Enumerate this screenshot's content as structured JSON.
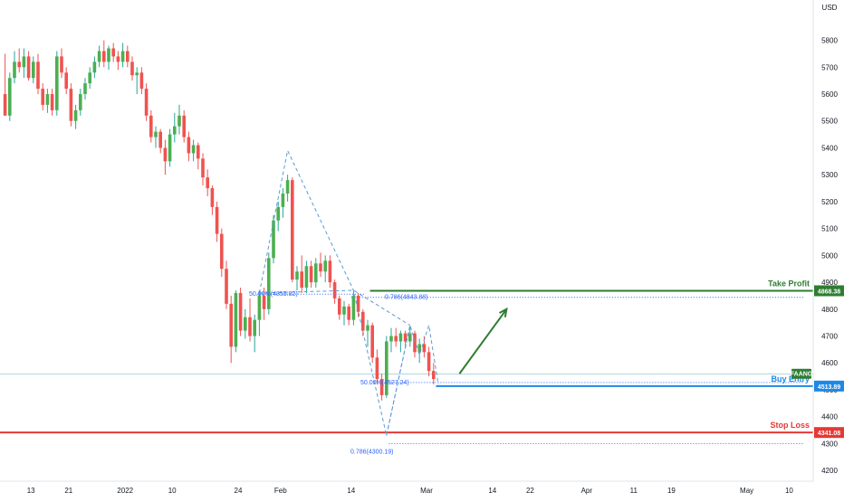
{
  "chart_data": {
    "type": "candlestick",
    "currency": "USD",
    "y_range": [
      4160,
      5950
    ],
    "y_ticks": [
      5800,
      5700,
      5600,
      5500,
      5400,
      5300,
      5200,
      5100,
      5000,
      4900,
      4800,
      4700,
      4600,
      4500,
      4400,
      4300,
      4200
    ],
    "x_tick_labels": [
      "13",
      "21",
      "2022",
      "10",
      "24",
      "Feb",
      "14",
      "Mar",
      "14",
      "22",
      "Apr",
      "11",
      "19",
      "May",
      "10"
    ],
    "x_tick_bar_index": [
      6,
      14,
      26,
      36,
      50,
      59,
      74,
      90,
      104,
      112,
      124,
      134,
      142,
      158,
      167
    ],
    "candles": [
      [
        5600,
        5750,
        5520,
        5520
      ],
      [
        5520,
        5680,
        5500,
        5660
      ],
      [
        5660,
        5760,
        5640,
        5720
      ],
      [
        5720,
        5770,
        5680,
        5700
      ],
      [
        5700,
        5770,
        5660,
        5740
      ],
      [
        5740,
        5760,
        5650,
        5660
      ],
      [
        5660,
        5740,
        5640,
        5720
      ],
      [
        5720,
        5750,
        5600,
        5620
      ],
      [
        5620,
        5640,
        5540,
        5560
      ],
      [
        5560,
        5620,
        5530,
        5600
      ],
      [
        5600,
        5620,
        5520,
        5540
      ],
      [
        5540,
        5760,
        5520,
        5740
      ],
      [
        5740,
        5770,
        5660,
        5680
      ],
      [
        5680,
        5700,
        5600,
        5620
      ],
      [
        5620,
        5640,
        5480,
        5500
      ],
      [
        5500,
        5560,
        5470,
        5540
      ],
      [
        5540,
        5620,
        5520,
        5600
      ],
      [
        5600,
        5660,
        5580,
        5640
      ],
      [
        5640,
        5700,
        5620,
        5680
      ],
      [
        5680,
        5740,
        5660,
        5720
      ],
      [
        5720,
        5780,
        5700,
        5760
      ],
      [
        5760,
        5800,
        5700,
        5720
      ],
      [
        5720,
        5780,
        5690,
        5770
      ],
      [
        5770,
        5790,
        5720,
        5740
      ],
      [
        5740,
        5760,
        5690,
        5720
      ],
      [
        5720,
        5790,
        5700,
        5760
      ],
      [
        5760,
        5780,
        5700,
        5720
      ],
      [
        5720,
        5740,
        5650,
        5670
      ],
      [
        5670,
        5700,
        5600,
        5680
      ],
      [
        5680,
        5700,
        5600,
        5620
      ],
      [
        5620,
        5640,
        5500,
        5520
      ],
      [
        5520,
        5540,
        5420,
        5440
      ],
      [
        5440,
        5480,
        5400,
        5460
      ],
      [
        5460,
        5470,
        5380,
        5400
      ],
      [
        5400,
        5430,
        5300,
        5350
      ],
      [
        5350,
        5470,
        5330,
        5450
      ],
      [
        5450,
        5530,
        5420,
        5480
      ],
      [
        5480,
        5560,
        5450,
        5520
      ],
      [
        5520,
        5540,
        5420,
        5440
      ],
      [
        5440,
        5460,
        5350,
        5380
      ],
      [
        5380,
        5430,
        5350,
        5410
      ],
      [
        5410,
        5420,
        5320,
        5360
      ],
      [
        5360,
        5380,
        5260,
        5290
      ],
      [
        5290,
        5320,
        5220,
        5250
      ],
      [
        5250,
        5260,
        5150,
        5180
      ],
      [
        5180,
        5200,
        5050,
        5080
      ],
      [
        5080,
        5100,
        4920,
        4950
      ],
      [
        4950,
        4980,
        4800,
        4820
      ],
      [
        4820,
        4850,
        4600,
        4660
      ],
      [
        4660,
        4870,
        4640,
        4860
      ],
      [
        4860,
        4880,
        4700,
        4720
      ],
      [
        4720,
        4800,
        4690,
        4770
      ],
      [
        4770,
        4840,
        4680,
        4700
      ],
      [
        4700,
        4780,
        4640,
        4760
      ],
      [
        4760,
        4870,
        4700,
        4850
      ],
      [
        4850,
        4880,
        4760,
        4800
      ],
      [
        4800,
        5010,
        4780,
        4990
      ],
      [
        4990,
        5150,
        4970,
        5130
      ],
      [
        5130,
        5200,
        5090,
        5180
      ],
      [
        5180,
        5250,
        5140,
        5230
      ],
      [
        5230,
        5300,
        5200,
        5280
      ],
      [
        5280,
        5290,
        4900,
        4910
      ],
      [
        4910,
        4960,
        4870,
        4940
      ],
      [
        4940,
        5000,
        4860,
        4880
      ],
      [
        4880,
        4980,
        4860,
        4960
      ],
      [
        4960,
        4980,
        4880,
        4900
      ],
      [
        4900,
        4990,
        4880,
        4970
      ],
      [
        4970,
        5010,
        4920,
        4940
      ],
      [
        4940,
        5000,
        4900,
        4980
      ],
      [
        4980,
        5000,
        4880,
        4900
      ],
      [
        4900,
        4910,
        4820,
        4840
      ],
      [
        4840,
        4850,
        4760,
        4780
      ],
      [
        4780,
        4830,
        4740,
        4810
      ],
      [
        4810,
        4820,
        4740,
        4760
      ],
      [
        4760,
        4870,
        4740,
        4850
      ],
      [
        4850,
        4860,
        4770,
        4790
      ],
      [
        4790,
        4800,
        4700,
        4720
      ],
      [
        4720,
        4760,
        4660,
        4740
      ],
      [
        4740,
        4750,
        4600,
        4620
      ],
      [
        4620,
        4650,
        4520,
        4540
      ],
      [
        4540,
        4560,
        4460,
        4480
      ],
      [
        4480,
        4700,
        4470,
        4680
      ],
      [
        4680,
        4730,
        4640,
        4700
      ],
      [
        4700,
        4730,
        4660,
        4680
      ],
      [
        4680,
        4720,
        4640,
        4710
      ],
      [
        4710,
        4720,
        4660,
        4680
      ],
      [
        4680,
        4730,
        4660,
        4710
      ],
      [
        4710,
        4720,
        4620,
        4640
      ],
      [
        4640,
        4690,
        4600,
        4670
      ],
      [
        4670,
        4700,
        4620,
        4640
      ],
      [
        4640,
        4660,
        4550,
        4570
      ],
      [
        4570,
        4600,
        4520,
        4540
      ]
    ],
    "levels": {
      "take_profit": {
        "label": "Take Profit",
        "value": "4868.38",
        "y": 4868.38,
        "color": "#2e7d32"
      },
      "buy_entry": {
        "label": "Buy Entry",
        "value": "4513.89",
        "y": 4513.89,
        "color": "#1e88e5"
      },
      "stop_loss": {
        "label": "Stop Loss",
        "value": "4341.08",
        "y": 4341.08,
        "color": "#e53935"
      },
      "last_price": {
        "y": 4558
      }
    },
    "tag": {
      "label": "FAANG",
      "color": "#2e7d32"
    },
    "fib_labels": [
      {
        "text": "50.00%(4855.82)",
        "y": 4855.82,
        "bar_from": 54,
        "bar_to": 77
      },
      {
        "text": "0.786(4843.88)",
        "y": 4843.88,
        "bar_from": 74,
        "bar_to": 170
      },
      {
        "text": "50.00%(4527.24)",
        "y": 4527.24,
        "bar_from": 82,
        "bar_to": 170
      },
      {
        "text": "0.786(4300.19)",
        "y": 4300.19,
        "bar_from": 82,
        "bar_to": 170
      }
    ],
    "harmonic_points": [
      [
        54,
        4860
      ],
      [
        60,
        5390
      ],
      [
        74,
        4870
      ],
      [
        81,
        4330
      ],
      [
        86,
        4740
      ]
    ],
    "harmonic_points_2": [
      [
        81,
        4330
      ],
      [
        86,
        4740
      ],
      [
        88,
        4630
      ],
      [
        90,
        4740
      ],
      [
        92,
        4520
      ]
    ],
    "projection_arrow": {
      "from": [
        97,
        4560
      ],
      "to": [
        107,
        4800
      ]
    }
  }
}
